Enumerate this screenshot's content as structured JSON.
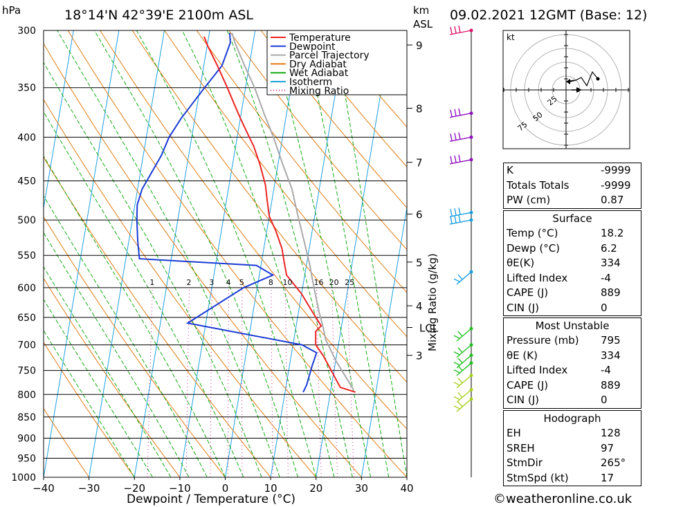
{
  "header": {
    "pressure_unit": "hPa",
    "location": "18°14'N  42°39'E  2100m  ASL",
    "km_label": "km",
    "asl_label": "ASL",
    "datetime": "09.02.2021  12GMT  (Base: 12)"
  },
  "colors": {
    "temperature": "#ee2222",
    "dewpoint": "#1a3ad6",
    "parcel": "#a8a8a8",
    "dry_adiabat": "#e07a10",
    "wet_adiabat": "#11aa11",
    "isotherm": "#1aa0e0",
    "mixing_ratio": "#d0208a"
  },
  "chart_data": {
    "type": "line",
    "title": "18°14'N  42°39'E  2100m  ASL",
    "xlabel": "Dewpoint / Temperature (°C)",
    "ylabel": "hPa",
    "xlim": [
      -40,
      40
    ],
    "ylim": [
      1000,
      300
    ],
    "pressure_ticks": [
      "300",
      "350",
      "400",
      "450",
      "500",
      "550",
      "600",
      "650",
      "700",
      "750",
      "800",
      "850",
      "900",
      "950",
      "1000"
    ],
    "temperature_ticks": [
      "−40",
      "−30",
      "−20",
      "−10",
      "0",
      "10",
      "20",
      "30",
      "40"
    ],
    "km_ticks": [
      {
        "km": 9,
        "p": 312
      },
      {
        "km": 8,
        "p": 370
      },
      {
        "km": 7,
        "p": 428
      },
      {
        "km": 6,
        "p": 492
      },
      {
        "km": 5,
        "p": 560
      },
      {
        "km": 4,
        "p": 630
      },
      {
        "km": 3,
        "p": 720
      }
    ],
    "lcl": {
      "label": "LCL",
      "p": 668
    },
    "mixing_ratio_axis_label": "Mixing Ratio (g/kg)",
    "mixing_ratio_values": [
      "1",
      "2",
      "3",
      "4",
      "5",
      "8",
      "10",
      "16",
      "20",
      "25"
    ],
    "legend": [
      {
        "name": "Temperature",
        "style": "solid"
      },
      {
        "name": "Dewpoint",
        "style": "solid"
      },
      {
        "name": "Parcel Trajectory",
        "style": "solid"
      },
      {
        "name": "Dry Adiabat",
        "style": "solid"
      },
      {
        "name": "Wet Adiabat",
        "style": "solid"
      },
      {
        "name": "Isotherm",
        "style": "solid"
      },
      {
        "name": "Mixing Ratio",
        "style": "dotted"
      }
    ],
    "series": [
      {
        "name": "Temperature",
        "points": [
          [
            25.5,
            795
          ],
          [
            22,
            785
          ],
          [
            17,
            720
          ],
          [
            15,
            700
          ],
          [
            14.5,
            675
          ],
          [
            15.5,
            665
          ],
          [
            13,
            640
          ],
          [
            10,
            610
          ],
          [
            6,
            580
          ],
          [
            5,
            560
          ],
          [
            4,
            540
          ],
          [
            2,
            515
          ],
          [
            0,
            495
          ],
          [
            -1,
            475
          ],
          [
            -2,
            455
          ],
          [
            -4,
            430
          ],
          [
            -6,
            410
          ],
          [
            -8,
            395
          ],
          [
            -10,
            380
          ],
          [
            -12,
            365
          ],
          [
            -14,
            350
          ],
          [
            -17,
            330
          ],
          [
            -20,
            312
          ],
          [
            -21,
            305
          ]
        ]
      },
      {
        "name": "Dewpoint",
        "points": [
          [
            14,
            795
          ],
          [
            14.5,
            780
          ],
          [
            15,
            740
          ],
          [
            15.5,
            715
          ],
          [
            12,
            700
          ],
          [
            -14,
            660
          ],
          [
            -3,
            600
          ],
          [
            3,
            580
          ],
          [
            -1,
            565
          ],
          [
            -27,
            555
          ],
          [
            -28,
            530
          ],
          [
            -29,
            500
          ],
          [
            -29.5,
            480
          ],
          [
            -29,
            460
          ],
          [
            -26,
            420
          ],
          [
            -25,
            400
          ],
          [
            -23,
            380
          ],
          [
            -19,
            350
          ],
          [
            -16,
            330
          ],
          [
            -15,
            310
          ],
          [
            -15.5,
            302
          ]
        ]
      },
      {
        "name": "Parcel Trajectory",
        "points": [
          [
            25,
            790
          ],
          [
            20,
            730
          ],
          [
            17,
            690
          ],
          [
            16,
            668
          ],
          [
            14.5,
            640
          ],
          [
            12.5,
            600
          ],
          [
            10.5,
            560
          ],
          [
            8,
            520
          ],
          [
            6,
            490
          ],
          [
            4,
            460
          ],
          [
            1,
            430
          ],
          [
            -2,
            400
          ],
          [
            -5,
            375
          ],
          [
            -8,
            350
          ],
          [
            -11,
            330
          ],
          [
            -14,
            310
          ],
          [
            -15,
            302
          ]
        ]
      }
    ],
    "wind_barbs": [
      {
        "p": 300,
        "color": "#e0106a"
      },
      {
        "p": 375,
        "color": "#9010c0"
      },
      {
        "p": 400,
        "color": "#9010c0"
      },
      {
        "p": 425,
        "color": "#9010c0"
      },
      {
        "p": 490,
        "color": "#1aa0e0"
      },
      {
        "p": 500,
        "color": "#1aa0e0"
      },
      {
        "p": 575,
        "color": "#1aa0e0"
      },
      {
        "p": 670,
        "color": "#22c022"
      },
      {
        "p": 700,
        "color": "#22c022"
      },
      {
        "p": 720,
        "color": "#22c022"
      },
      {
        "p": 735,
        "color": "#22c022"
      },
      {
        "p": 760,
        "color": "#a8d020"
      },
      {
        "p": 790,
        "color": "#a8d020"
      },
      {
        "p": 810,
        "color": "#a8d020"
      }
    ]
  },
  "hodograph": {
    "unit": "kt",
    "ring_labels": [
      "25",
      "50",
      "75"
    ]
  },
  "info": {
    "general": [
      {
        "label": "K",
        "value": "-9999"
      },
      {
        "label": "Totals Totals",
        "value": "-9999"
      },
      {
        "label": "PW (cm)",
        "value": "0.87"
      }
    ],
    "surface": {
      "title": "Surface",
      "rows": [
        {
          "label": "Temp (°C)",
          "value": "18.2"
        },
        {
          "label": "Dewp (°C)",
          "value": "6.2"
        },
        {
          "label": "θE(K)",
          "value": "334"
        },
        {
          "label": "Lifted Index",
          "value": "-4"
        },
        {
          "label": "CAPE (J)",
          "value": "889"
        },
        {
          "label": "CIN (J)",
          "value": "0"
        }
      ]
    },
    "most_unstable": {
      "title": "Most Unstable",
      "rows": [
        {
          "label": "Pressure (mb)",
          "value": "795"
        },
        {
          "label": "θE (K)",
          "value": "334"
        },
        {
          "label": "Lifted Index",
          "value": "-4"
        },
        {
          "label": "CAPE (J)",
          "value": "889"
        },
        {
          "label": "CIN (J)",
          "value": "0"
        }
      ]
    },
    "hodograph": {
      "title": "Hodograph",
      "rows": [
        {
          "label": "EH",
          "value": "128"
        },
        {
          "label": "SREH",
          "value": "97"
        },
        {
          "label": "StmDir",
          "value": "265°"
        },
        {
          "label": "StmSpd (kt)",
          "value": "17"
        }
      ]
    }
  },
  "footer": {
    "copyright": "©weatheronline.co.uk"
  }
}
